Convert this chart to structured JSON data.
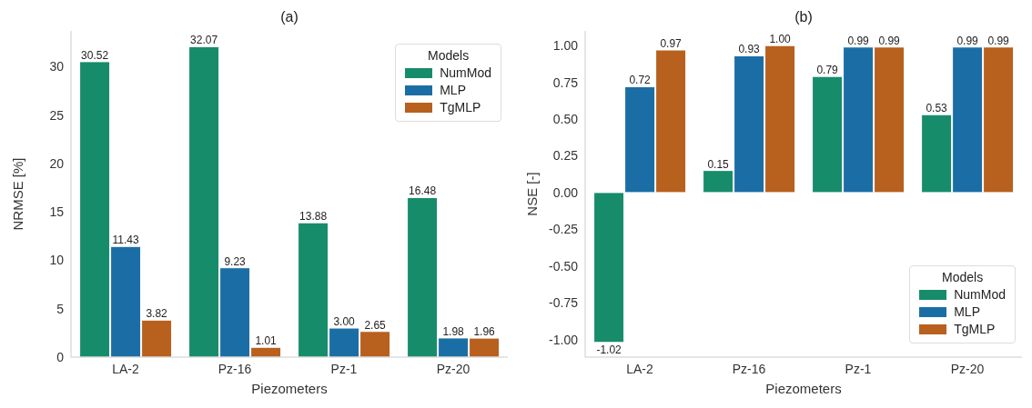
{
  "chart_data": [
    {
      "type": "bar",
      "title": "(a)",
      "xlabel": "Piezometers",
      "ylabel": "NRMSE [%]",
      "categories": [
        "LA-2",
        "Pz-16",
        "Pz-1",
        "Pz-20"
      ],
      "legend_title": "Models",
      "legend": "top right",
      "ylim": [
        0,
        33.7
      ],
      "yticks": [
        0,
        5,
        10,
        15,
        20,
        25,
        30
      ],
      "series": [
        {
          "name": "NumMod",
          "color": "#178c6b",
          "values": [
            30.52,
            32.07,
            13.88,
            16.48
          ],
          "value_labels": [
            "30.52",
            "32.07",
            "13.88",
            "16.48"
          ]
        },
        {
          "name": "MLP",
          "color": "#1b6ea5",
          "values": [
            11.43,
            9.23,
            3.0,
            1.98
          ],
          "value_labels": [
            "11.43",
            "9.23",
            "3.00",
            "1.98"
          ]
        },
        {
          "name": "TgMLP",
          "color": "#b8601e",
          "values": [
            3.82,
            1.01,
            2.65,
            1.96
          ],
          "value_labels": [
            "3.82",
            "1.01",
            "2.65",
            "1.96"
          ]
        }
      ]
    },
    {
      "type": "bar",
      "title": "(b)",
      "xlabel": "Piezometers",
      "ylabel": "NSE [-]",
      "categories": [
        "LA-2",
        "Pz-16",
        "Pz-1",
        "Pz-20"
      ],
      "legend_title": "Models",
      "legend": "bottom right",
      "ylim": [
        -1.12,
        1.1
      ],
      "yticks": [
        {
          "value": -1,
          "label": "-1.00"
        },
        {
          "value": -0.75,
          "label": "-0.75"
        },
        {
          "value": -0.5,
          "label": "-0.50"
        },
        {
          "value": -0.25,
          "label": "-0.25"
        },
        {
          "value": 0,
          "label": "0.00"
        },
        {
          "value": 0.25,
          "label": "0.25"
        },
        {
          "value": 0.5,
          "label": "0.50"
        },
        {
          "value": 0.75,
          "label": "0.75"
        },
        {
          "value": 1,
          "label": "1.00"
        }
      ],
      "series": [
        {
          "name": "NumMod",
          "color": "#178c6b",
          "values": [
            -1.02,
            0.15,
            0.79,
            0.53
          ],
          "value_labels": [
            "-1.02",
            "0.15",
            "0.79",
            "0.53"
          ]
        },
        {
          "name": "MLP",
          "color": "#1b6ea5",
          "values": [
            0.72,
            0.93,
            0.99,
            0.99
          ],
          "value_labels": [
            "0.72",
            "0.93",
            "0.99",
            "0.99"
          ]
        },
        {
          "name": "TgMLP",
          "color": "#b8601e",
          "values": [
            0.97,
            1.0,
            0.99,
            0.99
          ],
          "value_labels": [
            "0.97",
            "1.00",
            "0.99",
            "0.99"
          ]
        }
      ]
    }
  ]
}
